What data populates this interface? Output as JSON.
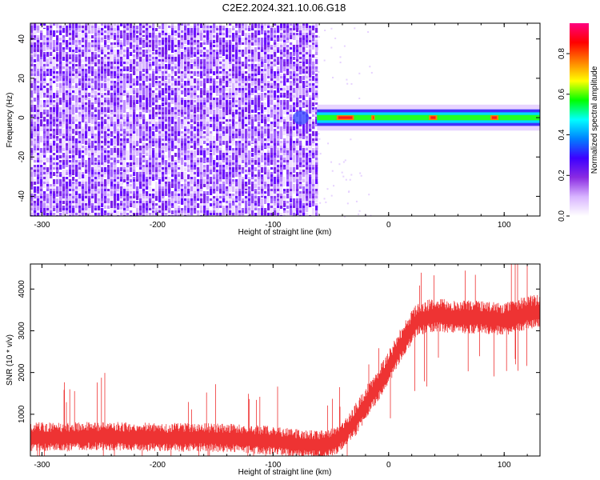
{
  "title": "C2E2.2024.321.10.06.G18",
  "chart_data": [
    {
      "type": "heatmap",
      "xlabel": "Height of straight line (km)",
      "ylabel": "Frequency (Hz)",
      "xlim": [
        -310,
        131
      ],
      "ylim": [
        -50,
        48
      ],
      "xticks": [
        -300,
        -200,
        -100,
        0,
        100
      ],
      "yticks": [
        -40,
        -20,
        0,
        20,
        40
      ],
      "noise_region_x": [
        -310,
        -62
      ],
      "signal_band": {
        "x": [
          -62,
          131
        ],
        "center_hz": 0,
        "half_width_hz": 3
      },
      "colorbar": {
        "label": "Normalized spectral amplitude",
        "range": [
          0,
          0.95
        ],
        "ticks": [
          0.0,
          0.2,
          0.4,
          0.6,
          0.8
        ],
        "colors": [
          "#ffffff",
          "#d8b4ff",
          "#8a2be2",
          "#3d00ff",
          "#0080ff",
          "#00ffff",
          "#00ff00",
          "#ffff00",
          "#ff8000",
          "#ff0000",
          "#ff0080"
        ]
      }
    },
    {
      "type": "line",
      "xlabel": "Height of straight line (km)",
      "ylabel": "SNR (10 * v/v)",
      "xlim": [
        -310,
        131
      ],
      "ylim": [
        0,
        4600
      ],
      "xticks": [
        -300,
        -200,
        -100,
        0,
        100
      ],
      "yticks": [
        1000,
        2000,
        3000,
        4000
      ],
      "series": [
        {
          "color": "#ee3333",
          "x": [
            -310,
            -280,
            -250,
            -220,
            -190,
            -160,
            -130,
            -100,
            -80,
            -60,
            -45,
            -35,
            -25,
            -15,
            -5,
            5,
            15,
            25,
            40,
            60,
            80,
            100,
            120,
            131
          ],
          "y": [
            480,
            470,
            500,
            480,
            460,
            470,
            440,
            390,
            320,
            300,
            380,
            650,
            1050,
            1500,
            1900,
            2400,
            2900,
            3300,
            3400,
            3350,
            3350,
            3300,
            3450,
            3500
          ]
        }
      ]
    }
  ]
}
